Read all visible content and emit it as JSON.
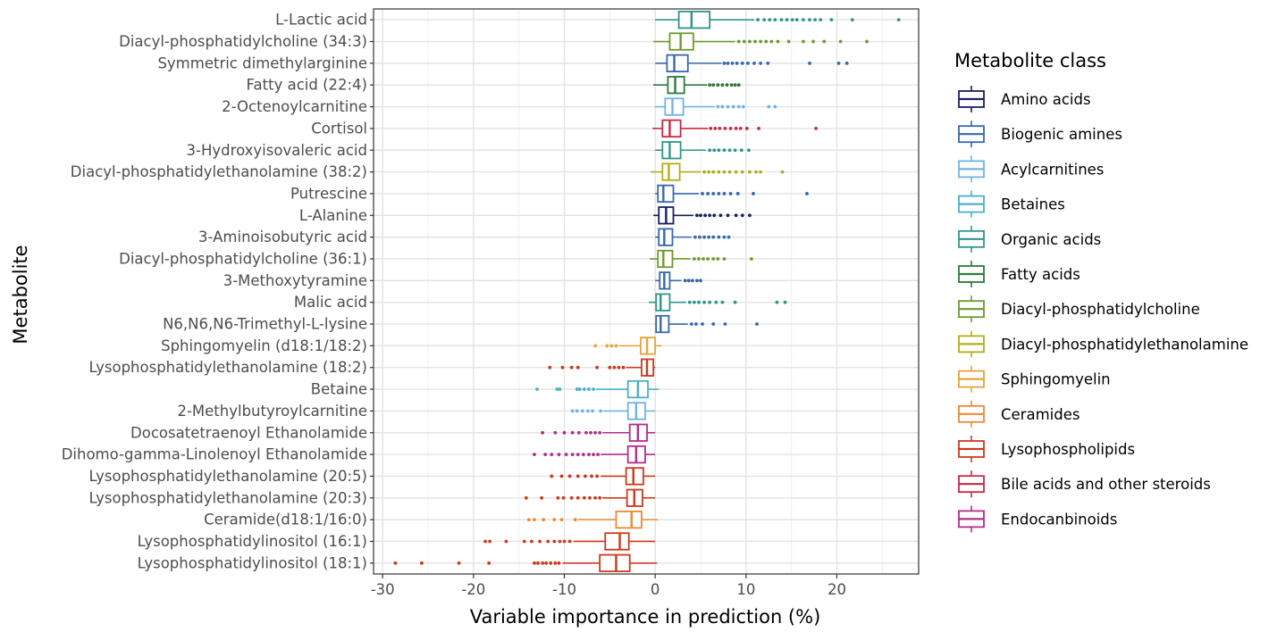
{
  "chart_data": {
    "type": "boxplot",
    "orientation": "horizontal",
    "xlabel": "Variable importance in prediction (%)",
    "ylabel": "Metabolite",
    "xlim": [
      -31,
      29
    ],
    "xticks": [
      -30,
      -20,
      -10,
      0,
      10,
      20
    ],
    "grid": true,
    "legend_title": "Metabolite class",
    "legend_position": "right",
    "classes": [
      {
        "name": "Amino acids",
        "color": "#18205e"
      },
      {
        "name": "Biogenic amines",
        "color": "#3767ad"
      },
      {
        "name": "Acylcarnitines",
        "color": "#6fb4e4"
      },
      {
        "name": "Betaines",
        "color": "#4bb0c8"
      },
      {
        "name": "Organic acids",
        "color": "#2f958a"
      },
      {
        "name": "Fatty acids",
        "color": "#2d7a3c"
      },
      {
        "name": "Diacyl-phosphatidylcholine",
        "color": "#6e9a2c"
      },
      {
        "name": "Diacyl-phosphatidylethanolamine",
        "color": "#b3ad1b"
      },
      {
        "name": "Sphingomyelin",
        "color": "#e8a33a"
      },
      {
        "name": "Ceramides",
        "color": "#ee8935"
      },
      {
        "name": "Lysophospholipids",
        "color": "#cc3a1f"
      },
      {
        "name": "Bile acids and other steroids",
        "color": "#c62a46"
      },
      {
        "name": "Endocanbinoids",
        "color": "#b32c8c"
      }
    ],
    "metabolites": [
      {
        "name": "L-Lactic acid",
        "class": "Organic acids",
        "whisker_low": 0,
        "q1": 2.6,
        "median": 4.0,
        "q3": 6.0,
        "whisker_high": 10.9,
        "outliers": [
          11.3,
          12.0,
          12.6,
          13.2,
          13.9,
          14.5,
          15.1,
          15.6,
          16.3,
          17.0,
          17.6,
          18.2,
          19.4,
          21.7,
          26.8
        ]
      },
      {
        "name": "Diacyl-phosphatidylcholine (34:3)",
        "class": "Diacyl-phosphatidylcholine",
        "whisker_low": -0.2,
        "q1": 1.6,
        "median": 2.8,
        "q3": 4.2,
        "whisker_high": 8.8,
        "outliers": [
          9.2,
          9.8,
          10.4,
          11.0,
          11.6,
          12.2,
          12.8,
          13.5,
          14.7,
          16.3,
          17.4,
          18.6,
          20.4,
          23.3
        ]
      },
      {
        "name": "Symmetric dimethylarginine",
        "class": "Biogenic amines",
        "whisker_low": 0,
        "q1": 1.3,
        "median": 2.1,
        "q3": 3.6,
        "whisker_high": 7.3,
        "outliers": [
          7.6,
          8.0,
          8.5,
          9.0,
          9.6,
          10.2,
          10.9,
          11.6,
          12.4,
          17.0,
          20.2,
          21.1
        ]
      },
      {
        "name": "Fatty acid (22:4)",
        "class": "Fatty acids",
        "whisker_low": -0.2,
        "q1": 1.4,
        "median": 2.2,
        "q3": 3.2,
        "whisker_high": 5.7,
        "outliers": [
          6.0,
          6.4,
          6.9,
          7.4,
          7.9,
          8.4,
          8.8,
          9.2
        ]
      },
      {
        "name": "2-Octenoylcarnitine",
        "class": "Acylcarnitines",
        "whisker_low": 0,
        "q1": 1.1,
        "median": 1.9,
        "q3": 3.1,
        "whisker_high": 6.5,
        "outliers": [
          6.9,
          7.4,
          8.0,
          8.6,
          9.2,
          9.7,
          12.5,
          13.2
        ]
      },
      {
        "name": "Cortisol",
        "class": "Bile acids and other steroids",
        "whisker_low": -0.3,
        "q1": 0.8,
        "median": 1.6,
        "q3": 2.8,
        "whisker_high": 5.8,
        "outliers": [
          6.1,
          6.6,
          7.1,
          7.7,
          8.3,
          8.9,
          9.4,
          10.1,
          11.4,
          17.7
        ]
      },
      {
        "name": "3-Hydroxyisovaleric acid",
        "class": "Organic acids",
        "whisker_low": 0,
        "q1": 0.8,
        "median": 1.6,
        "q3": 2.8,
        "whisker_high": 5.6,
        "outliers": [
          6.0,
          6.5,
          7.0,
          7.6,
          8.2,
          8.8,
          9.5,
          10.3
        ]
      },
      {
        "name": "Diacyl-phosphatidylethanolamine (38:2)",
        "class": "Diacyl-phosphatidylethanolamine",
        "whisker_low": -0.5,
        "q1": 0.8,
        "median": 1.5,
        "q3": 2.7,
        "whisker_high": 5.0,
        "outliers": [
          5.4,
          5.9,
          6.4,
          7.0,
          7.6,
          8.2,
          8.9,
          9.6,
          10.4,
          11.1,
          11.6,
          14.0
        ]
      },
      {
        "name": "Putrescine",
        "class": "Biogenic amines",
        "whisker_low": 0,
        "q1": 0.3,
        "median": 0.9,
        "q3": 2.0,
        "whisker_high": 4.8,
        "outliers": [
          5.2,
          5.8,
          6.4,
          7.0,
          7.6,
          8.3,
          9.1,
          10.8,
          16.7
        ]
      },
      {
        "name": "L-Alanine",
        "class": "Amino acids",
        "whisker_low": -0.2,
        "q1": 0.4,
        "median": 1.2,
        "q3": 2.0,
        "whisker_high": 4.2,
        "outliers": [
          4.6,
          5.0,
          5.5,
          6.0,
          6.5,
          7.2,
          8.0,
          8.9,
          9.6,
          10.4
        ]
      },
      {
        "name": "3-Aminoisobutyric acid",
        "class": "Biogenic amines",
        "whisker_low": 0,
        "q1": 0.4,
        "median": 1.0,
        "q3": 1.9,
        "whisker_high": 4.0,
        "outliers": [
          4.4,
          4.9,
          5.4,
          5.9,
          6.4,
          7.0,
          7.6,
          8.1
        ]
      },
      {
        "name": "Diacyl-phosphatidylcholine (36:1)",
        "class": "Diacyl-phosphatidylcholine",
        "whisker_low": -0.6,
        "q1": 0.3,
        "median": 0.9,
        "q3": 1.9,
        "whisker_high": 3.9,
        "outliers": [
          4.3,
          4.8,
          5.3,
          5.8,
          6.4,
          6.9,
          7.6,
          10.6
        ]
      },
      {
        "name": "3-Methoxytyramine",
        "class": "Biogenic amines",
        "whisker_low": 0,
        "q1": 0.5,
        "median": 1.0,
        "q3": 1.6,
        "whisker_high": 2.9,
        "outliers": [
          3.3,
          3.7,
          4.1,
          4.6,
          5.0
        ]
      },
      {
        "name": "Malic acid",
        "class": "Organic acids",
        "whisker_low": -0.7,
        "q1": 0.1,
        "median": 0.6,
        "q3": 1.6,
        "whisker_high": 3.4,
        "outliers": [
          3.8,
          4.3,
          4.8,
          5.4,
          6.0,
          6.7,
          7.4,
          8.8,
          13.4,
          14.3
        ]
      },
      {
        "name": "N6,N6,N6-Trimethyl-L-lysine",
        "class": "Biogenic amines",
        "whisker_low": 0,
        "q1": 0.1,
        "median": 0.6,
        "q3": 1.5,
        "whisker_high": 3.6,
        "outliers": [
          4.0,
          4.5,
          5.2,
          6.4,
          7.7,
          11.2
        ]
      },
      {
        "name": "Sphingomyelin (d18:1/18:2)",
        "class": "Sphingomyelin",
        "whisker_low": -4.0,
        "q1": -1.6,
        "median": -0.9,
        "q3": 0,
        "whisker_high": 0.7,
        "outliers": [
          -4.3,
          -4.8,
          -5.3,
          -6.6
        ]
      },
      {
        "name": "Lysophosphatidylethanolamine (18:2)",
        "class": "Lysophospholipids",
        "whisker_low": -3.2,
        "q1": -1.5,
        "median": -0.9,
        "q3": -0.2,
        "whisker_high": 0,
        "outliers": [
          -3.5,
          -4.0,
          -4.5,
          -5.0,
          -6.4,
          -8.5,
          -9.2,
          -10.2,
          -11.6
        ]
      },
      {
        "name": "Betaine",
        "class": "Betaines",
        "whisker_low": -6.5,
        "q1": -3.0,
        "median": -1.9,
        "q3": -0.8,
        "whisker_high": 0.4,
        "outliers": [
          -6.8,
          -7.3,
          -7.8,
          -8.3,
          -8.6,
          -10.5,
          -10.8,
          -13.0
        ]
      },
      {
        "name": "2-Methylbutyroylcarnitine",
        "class": "Acylcarnitines",
        "whisker_low": -5.7,
        "q1": -3.0,
        "median": -2.1,
        "q3": -1.1,
        "whisker_high": 0,
        "outliers": [
          -6.0,
          -6.9,
          -7.4,
          -8.0,
          -8.6,
          -9.1
        ]
      },
      {
        "name": "Docosatetraenoyl Ethanolamide",
        "class": "Endocanbinoids",
        "whisker_low": -5.8,
        "q1": -2.8,
        "median": -1.9,
        "q3": -0.9,
        "whisker_high": 0,
        "outliers": [
          -6.1,
          -6.6,
          -7.1,
          -7.6,
          -8.4,
          -9.1,
          -10.0,
          -11.0,
          -12.4
        ]
      },
      {
        "name": "Dihomo-gamma-Linolenoyl Ethanolamide",
        "class": "Endocanbinoids",
        "whisker_low": -6.0,
        "q1": -3.0,
        "median": -2.1,
        "q3": -1.1,
        "whisker_high": 0,
        "outliers": [
          -6.3,
          -6.8,
          -7.3,
          -7.9,
          -8.5,
          -9.1,
          -9.8,
          -10.6,
          -11.4,
          -12.1,
          -13.3
        ]
      },
      {
        "name": "Lysophosphatidylethanolamine (20:5)",
        "class": "Lysophospholipids",
        "whisker_low": -6.0,
        "q1": -3.2,
        "median": -2.4,
        "q3": -1.3,
        "whisker_high": 0,
        "outliers": [
          -6.4,
          -7.0,
          -7.7,
          -8.5,
          -9.4,
          -10.3,
          -11.4
        ]
      },
      {
        "name": "Lysophosphatidylethanolamine (20:3)",
        "class": "Lysophospholipids",
        "whisker_low": -5.8,
        "q1": -3.1,
        "median": -2.3,
        "q3": -1.4,
        "whisker_high": 0,
        "outliers": [
          -6.1,
          -6.6,
          -7.2,
          -7.8,
          -8.5,
          -9.2,
          -10.1,
          -10.7,
          -12.5,
          -14.2
        ]
      },
      {
        "name": "Ceramide(d18:1/16:0)",
        "class": "Ceramides",
        "whisker_low": -8.5,
        "q1": -4.3,
        "median": -2.6,
        "q3": -1.5,
        "whisker_high": 0.3,
        "outliers": [
          -8.8,
          -10.3,
          -11.1,
          -12.3,
          -13.3,
          -13.9
        ]
      },
      {
        "name": "Lysophosphatidylinositol (16:1)",
        "class": "Lysophospholipids",
        "whisker_low": -9.0,
        "q1": -5.5,
        "median": -3.9,
        "q3": -2.9,
        "whisker_high": 0,
        "outliers": [
          -9.4,
          -10.0,
          -10.5,
          -11.1,
          -11.8,
          -12.7,
          -13.6,
          -14.4,
          -16.4,
          -18.2,
          -18.7
        ]
      },
      {
        "name": "Lysophosphatidylinositol (18:1)",
        "class": "Lysophospholipids",
        "whisker_low": -10.2,
        "q1": -6.1,
        "median": -4.3,
        "q3": -2.8,
        "whisker_high": 0.2,
        "outliers": [
          -10.6,
          -11.0,
          -11.5,
          -12.0,
          -12.4,
          -12.9,
          -13.3,
          -18.3,
          -21.6,
          -25.7,
          -28.6
        ]
      }
    ]
  }
}
